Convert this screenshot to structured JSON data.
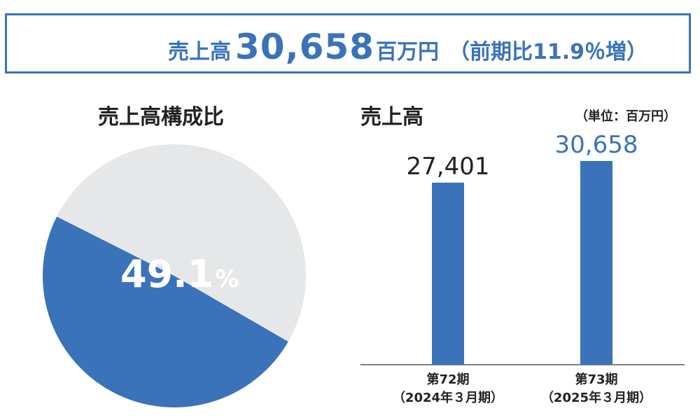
{
  "banner": {
    "label": "売上高",
    "value": "30,658",
    "unit": "百万円",
    "comparison": "（前期比11.9％増）"
  },
  "pie_title": "売上高構成比",
  "bar_title": "売上高",
  "unit_note": "（単位：百万円）",
  "colors": {
    "accent": "#3a73b9",
    "grey": "#e6e7e8",
    "text": "#222222"
  },
  "chart_data": [
    {
      "type": "pie",
      "title": "売上高構成比",
      "values": [
        49.1,
        50.9
      ],
      "labels": [
        "49.1",
        ""
      ],
      "label_suffix": "%",
      "colors": [
        "#3a73b9",
        "#e6e7e8"
      ]
    },
    {
      "type": "bar",
      "title": "売上高",
      "unit": "（単位：百万円）",
      "categories": [
        "第72期\n（2024年３月期）",
        "第73期\n（2025年３月期）"
      ],
      "category_lines": [
        [
          "第72期",
          "（2024年３月期）"
        ],
        [
          "第73期",
          "（2025年３月期）"
        ]
      ],
      "values": [
        27401,
        30658
      ],
      "value_labels": [
        "27,401",
        "30,658"
      ],
      "label_colors": [
        "#222222",
        "#3a73b9"
      ],
      "ylim": [
        0,
        32000
      ]
    }
  ]
}
